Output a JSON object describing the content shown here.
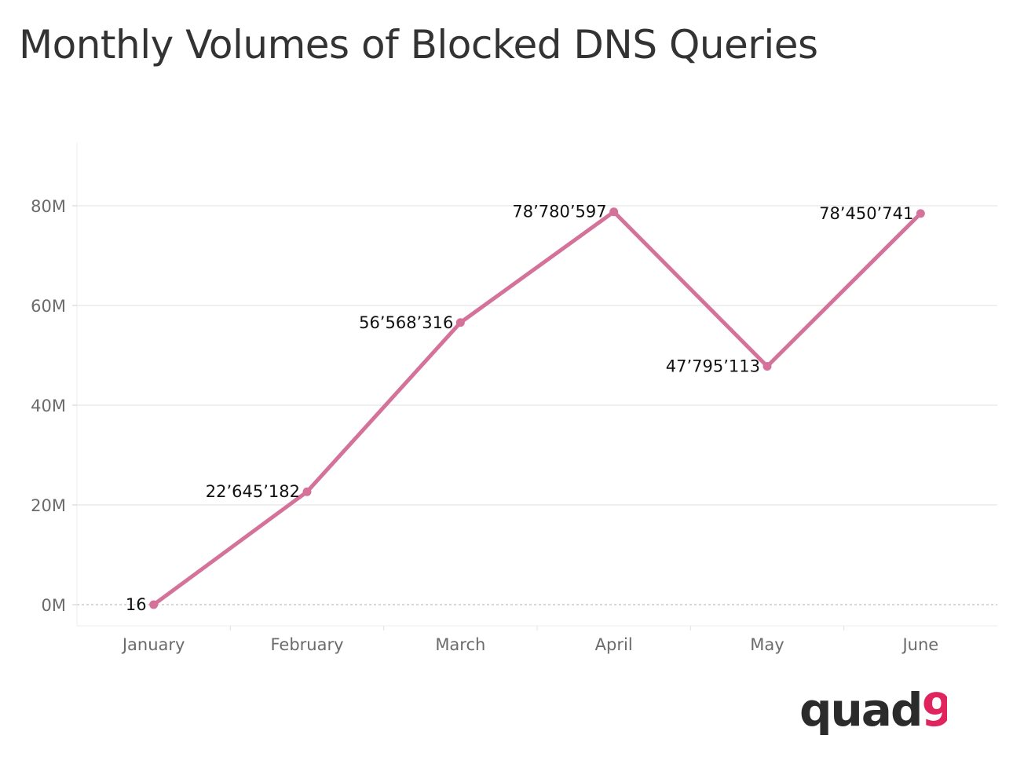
{
  "title": "Monthly Volumes of Blocked DNS Queries",
  "chart_data": {
    "type": "line",
    "title": "Monthly Volumes of Blocked DNS Queries",
    "xlabel": "",
    "ylabel": "",
    "categories": [
      "January",
      "February",
      "March",
      "April",
      "May",
      "June"
    ],
    "series": [
      {
        "values": [
          16,
          22645182,
          56568316,
          78780597,
          47795113,
          78450741
        ],
        "labels": [
          "16",
          "22’645’182",
          "56’568’316",
          "78’780’597",
          "47’795’113",
          "78’450’741"
        ],
        "color": "#d4729a"
      }
    ],
    "ylim": [
      0,
      90000000
    ],
    "yticks": [
      0,
      20000000,
      40000000,
      60000000,
      80000000
    ],
    "ytick_labels": [
      "0M",
      "20M",
      "40M",
      "60M",
      "80M"
    ],
    "grid": true,
    "legend": "none"
  },
  "logo": {
    "text_main": "quad",
    "text_accent": "9",
    "main_color": "#2b2b2b",
    "accent_color": "#e0245e"
  }
}
